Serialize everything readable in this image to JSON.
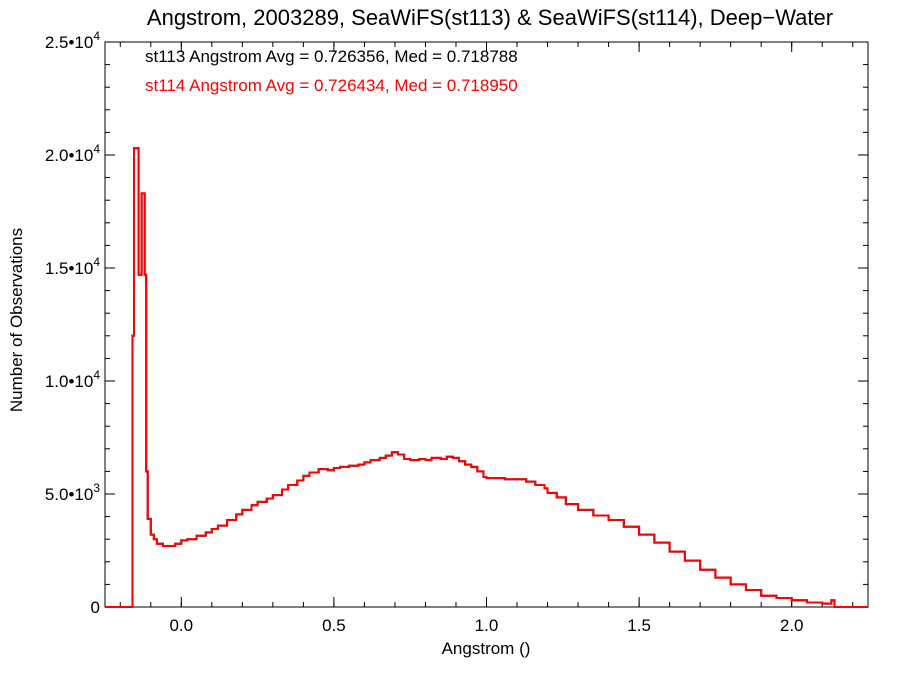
{
  "chart_data": {
    "type": "line",
    "title": "Angstrom, 2003289, SeaWiFS(st113) & SeaWiFS(st114), Deep−Water",
    "xlabel": "Angstrom ()",
    "ylabel": "Number of Observations",
    "xlim": [
      -0.25,
      2.25
    ],
    "ylim": [
      0,
      25000
    ],
    "x_ticks": [
      {
        "value": 0.0,
        "label": "0.0"
      },
      {
        "value": 0.5,
        "label": "0.5"
      },
      {
        "value": 1.0,
        "label": "1.0"
      },
      {
        "value": 1.5,
        "label": "1.5"
      },
      {
        "value": 2.0,
        "label": "2.0"
      }
    ],
    "y_ticks": [
      {
        "value": 0,
        "mant": "0",
        "exp": ""
      },
      {
        "value": 5000,
        "mant": "5.0•10",
        "exp": "3"
      },
      {
        "value": 10000,
        "mant": "1.0•10",
        "exp": "4"
      },
      {
        "value": 15000,
        "mant": "1.5•10",
        "exp": "4"
      },
      {
        "value": 20000,
        "mant": "2.0•10",
        "exp": "4"
      },
      {
        "value": 25000,
        "mant": "2.5•10",
        "exp": "4"
      }
    ],
    "annotations": [
      {
        "text": "st113 Angstrom Avg = 0.726356, Med = 0.718788",
        "color": "#000000"
      },
      {
        "text": "st114 Angstrom Avg = 0.726434, Med = 0.718950",
        "color": "#ff0000"
      }
    ],
    "series": [
      {
        "color": "#000000",
        "points": [
          [
            -0.25,
            0
          ],
          [
            -0.17,
            0
          ],
          [
            -0.16,
            12000
          ],
          [
            -0.155,
            20300
          ],
          [
            -0.145,
            20300
          ],
          [
            -0.14,
            14700
          ],
          [
            -0.13,
            18300
          ],
          [
            -0.12,
            14700
          ],
          [
            -0.115,
            6000
          ],
          [
            -0.11,
            3900
          ],
          [
            -0.1,
            3200
          ],
          [
            -0.09,
            3000
          ],
          [
            -0.08,
            2800
          ],
          [
            -0.06,
            2700
          ],
          [
            -0.04,
            2700
          ],
          [
            -0.02,
            2800
          ],
          [
            0.0,
            2950
          ],
          [
            0.02,
            3000
          ],
          [
            0.05,
            3150
          ],
          [
            0.08,
            3300
          ],
          [
            0.1,
            3450
          ],
          [
            0.12,
            3600
          ],
          [
            0.15,
            3850
          ],
          [
            0.18,
            4100
          ],
          [
            0.2,
            4300
          ],
          [
            0.23,
            4500
          ],
          [
            0.25,
            4650
          ],
          [
            0.28,
            4800
          ],
          [
            0.3,
            4950
          ],
          [
            0.33,
            5200
          ],
          [
            0.35,
            5400
          ],
          [
            0.38,
            5600
          ],
          [
            0.4,
            5800
          ],
          [
            0.42,
            5950
          ],
          [
            0.45,
            6100
          ],
          [
            0.48,
            6050
          ],
          [
            0.5,
            6150
          ],
          [
            0.52,
            6200
          ],
          [
            0.55,
            6250
          ],
          [
            0.58,
            6300
          ],
          [
            0.6,
            6400
          ],
          [
            0.62,
            6500
          ],
          [
            0.65,
            6600
          ],
          [
            0.67,
            6700
          ],
          [
            0.69,
            6850
          ],
          [
            0.71,
            6750
          ],
          [
            0.73,
            6550
          ],
          [
            0.75,
            6500
          ],
          [
            0.78,
            6550
          ],
          [
            0.8,
            6500
          ],
          [
            0.82,
            6600
          ],
          [
            0.85,
            6550
          ],
          [
            0.87,
            6650
          ],
          [
            0.89,
            6600
          ],
          [
            0.91,
            6450
          ],
          [
            0.93,
            6300
          ],
          [
            0.95,
            6200
          ],
          [
            0.97,
            6000
          ],
          [
            0.99,
            5750
          ],
          [
            1.0,
            5700
          ],
          [
            1.03,
            5700
          ],
          [
            1.06,
            5650
          ],
          [
            1.1,
            5650
          ],
          [
            1.13,
            5550
          ],
          [
            1.16,
            5400
          ],
          [
            1.19,
            5250
          ],
          [
            1.2,
            5050
          ],
          [
            1.23,
            4850
          ],
          [
            1.26,
            4550
          ],
          [
            1.3,
            4300
          ],
          [
            1.35,
            4050
          ],
          [
            1.4,
            3850
          ],
          [
            1.45,
            3550
          ],
          [
            1.5,
            3200
          ],
          [
            1.55,
            2850
          ],
          [
            1.6,
            2450
          ],
          [
            1.65,
            2050
          ],
          [
            1.7,
            1650
          ],
          [
            1.75,
            1300
          ],
          [
            1.8,
            1000
          ],
          [
            1.85,
            750
          ],
          [
            1.9,
            500
          ],
          [
            1.95,
            400
          ],
          [
            2.0,
            300
          ],
          [
            2.05,
            200
          ],
          [
            2.1,
            150
          ],
          [
            2.13,
            300
          ],
          [
            2.14,
            0
          ],
          [
            2.25,
            0
          ]
        ]
      },
      {
        "color": "#ff0000",
        "points": [
          [
            -0.25,
            0
          ],
          [
            -0.17,
            0
          ],
          [
            -0.16,
            12000
          ],
          [
            -0.155,
            20300
          ],
          [
            -0.145,
            20300
          ],
          [
            -0.14,
            14700
          ],
          [
            -0.13,
            18300
          ],
          [
            -0.12,
            14700
          ],
          [
            -0.115,
            6000
          ],
          [
            -0.11,
            3900
          ],
          [
            -0.1,
            3200
          ],
          [
            -0.09,
            3000
          ],
          [
            -0.08,
            2800
          ],
          [
            -0.06,
            2700
          ],
          [
            -0.04,
            2700
          ],
          [
            -0.02,
            2800
          ],
          [
            0.0,
            2950
          ],
          [
            0.02,
            3000
          ],
          [
            0.05,
            3150
          ],
          [
            0.08,
            3300
          ],
          [
            0.1,
            3450
          ],
          [
            0.12,
            3600
          ],
          [
            0.15,
            3850
          ],
          [
            0.18,
            4100
          ],
          [
            0.2,
            4300
          ],
          [
            0.23,
            4500
          ],
          [
            0.25,
            4650
          ],
          [
            0.28,
            4800
          ],
          [
            0.3,
            4950
          ],
          [
            0.33,
            5200
          ],
          [
            0.35,
            5400
          ],
          [
            0.38,
            5600
          ],
          [
            0.4,
            5800
          ],
          [
            0.42,
            5950
          ],
          [
            0.45,
            6100
          ],
          [
            0.48,
            6050
          ],
          [
            0.5,
            6150
          ],
          [
            0.52,
            6200
          ],
          [
            0.55,
            6250
          ],
          [
            0.58,
            6300
          ],
          [
            0.6,
            6400
          ],
          [
            0.62,
            6500
          ],
          [
            0.65,
            6600
          ],
          [
            0.67,
            6700
          ],
          [
            0.69,
            6850
          ],
          [
            0.71,
            6750
          ],
          [
            0.73,
            6550
          ],
          [
            0.75,
            6500
          ],
          [
            0.78,
            6550
          ],
          [
            0.8,
            6500
          ],
          [
            0.82,
            6600
          ],
          [
            0.85,
            6550
          ],
          [
            0.87,
            6650
          ],
          [
            0.89,
            6600
          ],
          [
            0.91,
            6450
          ],
          [
            0.93,
            6300
          ],
          [
            0.95,
            6200
          ],
          [
            0.97,
            6000
          ],
          [
            0.99,
            5750
          ],
          [
            1.0,
            5700
          ],
          [
            1.03,
            5700
          ],
          [
            1.06,
            5650
          ],
          [
            1.1,
            5650
          ],
          [
            1.13,
            5550
          ],
          [
            1.16,
            5400
          ],
          [
            1.19,
            5250
          ],
          [
            1.2,
            5050
          ],
          [
            1.23,
            4850
          ],
          [
            1.26,
            4550
          ],
          [
            1.3,
            4300
          ],
          [
            1.35,
            4050
          ],
          [
            1.4,
            3850
          ],
          [
            1.45,
            3550
          ],
          [
            1.5,
            3200
          ],
          [
            1.55,
            2850
          ],
          [
            1.6,
            2450
          ],
          [
            1.65,
            2050
          ],
          [
            1.7,
            1650
          ],
          [
            1.75,
            1300
          ],
          [
            1.8,
            1000
          ],
          [
            1.85,
            750
          ],
          [
            1.9,
            500
          ],
          [
            1.95,
            400
          ],
          [
            2.0,
            300
          ],
          [
            2.05,
            200
          ],
          [
            2.1,
            150
          ],
          [
            2.13,
            300
          ],
          [
            2.14,
            0
          ],
          [
            2.25,
            0
          ]
        ]
      }
    ]
  }
}
